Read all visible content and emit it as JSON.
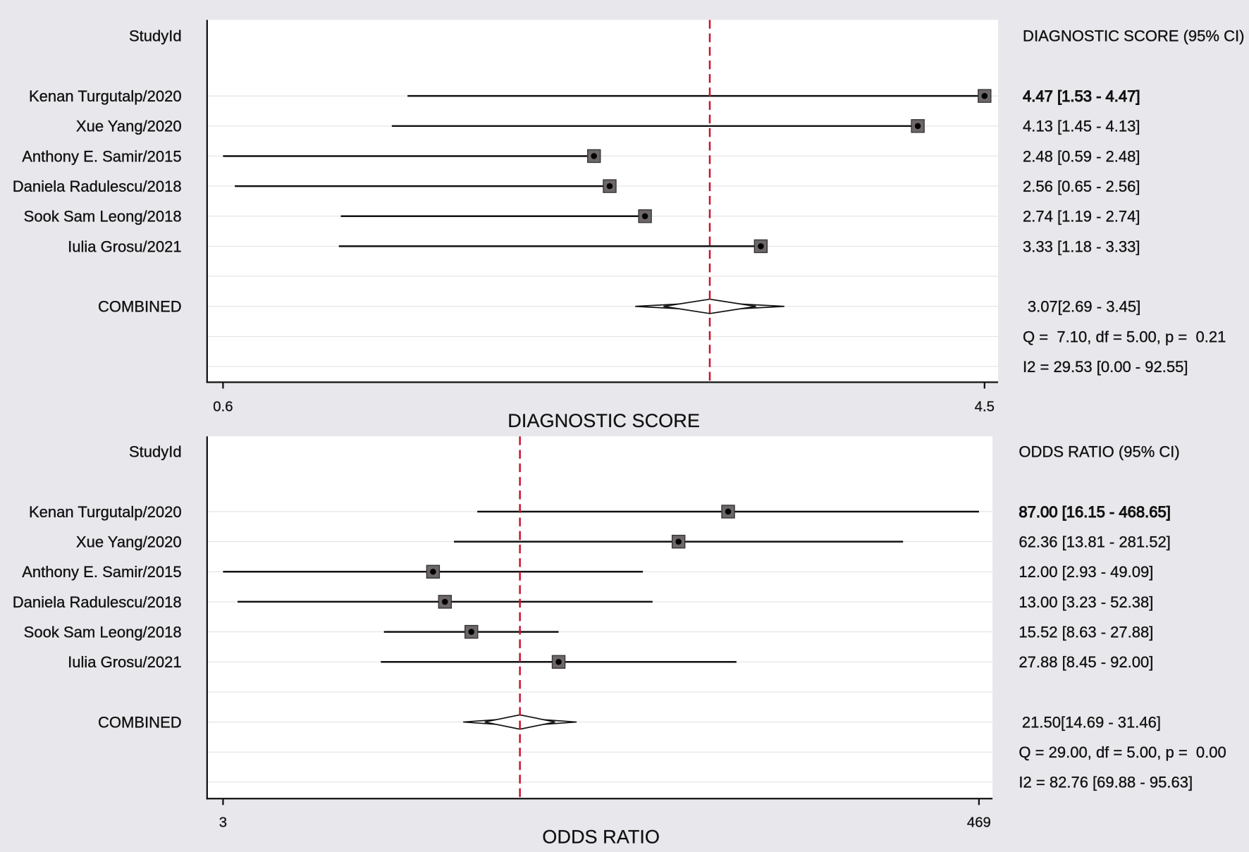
{
  "colors": {
    "graph_background": "#e8e8ec",
    "plot_background": "#ffffff",
    "reference_line": "#c8102e",
    "marker_fill": "#6e6769",
    "gridline": "#e3e3e6"
  },
  "chart_data": [
    {
      "type": "scatter",
      "orientation": "horizontal",
      "x_scale": "linear",
      "xlabel": "DIAGNOSTIC SCORE",
      "xlim": [
        0.59,
        4.47
      ],
      "xticks": [
        0.59,
        4.47
      ],
      "xtick_labels": [
        "0.6",
        "4.5"
      ],
      "grid": true,
      "reference_line": 3.07,
      "label_header": "StudyId",
      "ci_header": "DIAGNOSTIC SCORE (95% CI)",
      "studies": [
        {
          "name": "Kenan Turgutalp/2020",
          "estimate": 4.47,
          "lower": 1.53,
          "upper": 4.47,
          "ci_text": "4.47 [1.53 - 4.47]"
        },
        {
          "name": "Xue Yang/2020",
          "estimate": 4.13,
          "lower": 1.45,
          "upper": 4.13,
          "ci_text": "4.13 [1.45 - 4.13]"
        },
        {
          "name": "Anthony E. Samir/2015",
          "estimate": 2.48,
          "lower": 0.59,
          "upper": 2.48,
          "ci_text": "2.48 [0.59 - 2.48]"
        },
        {
          "name": "Daniela Radulescu/2018",
          "estimate": 2.56,
          "lower": 0.65,
          "upper": 2.56,
          "ci_text": "2.56 [0.65 - 2.56]"
        },
        {
          "name": "Sook Sam Leong/2018",
          "estimate": 2.74,
          "lower": 1.19,
          "upper": 2.74,
          "ci_text": "2.74 [1.19 - 2.74]"
        },
        {
          "name": "Iulia Grosu/2021",
          "estimate": 3.33,
          "lower": 1.18,
          "upper": 3.33,
          "ci_text": "3.33 [1.18 - 3.33]"
        }
      ],
      "combined": {
        "name": "COMBINED",
        "estimate": 3.07,
        "lower": 2.69,
        "upper": 3.45,
        "ci_text": "3.07[2.69 - 3.45]"
      },
      "heterogeneity": [
        "Q =  7.10, df = 5.00, p =  0.21",
        "I2 = 29.53 [0.00 - 92.55]"
      ]
    },
    {
      "type": "scatter",
      "orientation": "horizontal",
      "x_scale": "log",
      "xlabel": "ODDS RATIO",
      "xlim": [
        2.93,
        468.65
      ],
      "xticks": [
        2.93,
        468.65
      ],
      "xtick_labels": [
        "3",
        "469"
      ],
      "grid": true,
      "reference_line": 21.5,
      "label_header": "StudyId",
      "ci_header": "ODDS RATIO (95% CI)",
      "studies": [
        {
          "name": "Kenan Turgutalp/2020",
          "estimate": 87.0,
          "lower": 16.15,
          "upper": 468.65,
          "ci_text": "87.00 [16.15 - 468.65]"
        },
        {
          "name": "Xue Yang/2020",
          "estimate": 62.36,
          "lower": 13.81,
          "upper": 281.52,
          "ci_text": "62.36 [13.81 - 281.52]"
        },
        {
          "name": "Anthony E. Samir/2015",
          "estimate": 12.0,
          "lower": 2.93,
          "upper": 49.09,
          "ci_text": "12.00 [2.93 - 49.09]"
        },
        {
          "name": "Daniela Radulescu/2018",
          "estimate": 13.0,
          "lower": 3.23,
          "upper": 52.38,
          "ci_text": "13.00 [3.23 - 52.38]"
        },
        {
          "name": "Sook Sam Leong/2018",
          "estimate": 15.52,
          "lower": 8.63,
          "upper": 27.88,
          "ci_text": "15.52 [8.63 - 27.88]"
        },
        {
          "name": "Iulia Grosu/2021",
          "estimate": 27.88,
          "lower": 8.45,
          "upper": 92.0,
          "ci_text": "27.88 [8.45 - 92.00]"
        }
      ],
      "combined": {
        "name": "COMBINED",
        "estimate": 21.5,
        "lower": 14.69,
        "upper": 31.46,
        "ci_text": "21.50[14.69 - 31.46]"
      },
      "heterogeneity": [
        "Q = 29.00, df = 5.00, p =  0.00",
        "I2 = 82.76 [69.88 - 95.63]"
      ]
    }
  ]
}
